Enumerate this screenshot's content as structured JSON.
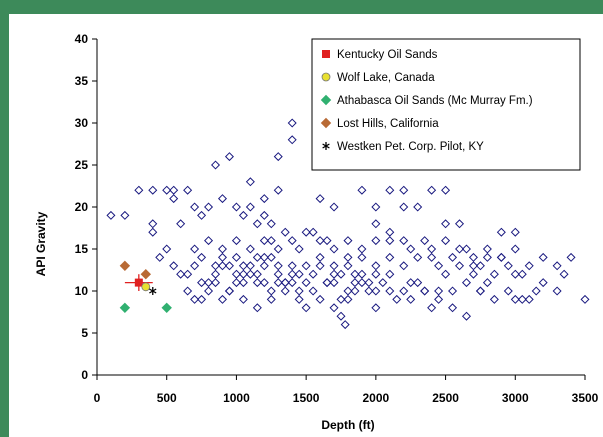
{
  "chart_data": {
    "type": "scatter",
    "title": "",
    "xlabel": "Depth (ft)",
    "ylabel": "API Gravity",
    "xlim": [
      0,
      3500
    ],
    "ylim": [
      0,
      40
    ],
    "xticks": [
      0,
      500,
      1000,
      1500,
      2000,
      2500,
      3000,
      3500
    ],
    "yticks": [
      0,
      5,
      10,
      15,
      20,
      25,
      30,
      35,
      40
    ],
    "grid": false,
    "legend_position": "top-right",
    "series": [
      {
        "name": "Kentucky Oil Sands",
        "marker": "square",
        "color": "#e02020",
        "points": [
          [
            300,
            11
          ]
        ],
        "error_x": [
          [
            200,
            400
          ]
        ],
        "error_y": [
          [
            10,
            12
          ]
        ]
      },
      {
        "name": "Wolf Lake, Canada",
        "marker": "circle",
        "color": "#e8e030",
        "points": [
          [
            350,
            10.5
          ]
        ]
      },
      {
        "name": "Athabasca Oil Sands (Mc Murray Fm.)",
        "marker": "diamond",
        "color": "#30b070",
        "points": [
          [
            200,
            8
          ],
          [
            500,
            8
          ]
        ]
      },
      {
        "name": "Lost Hills, California",
        "marker": "diamond",
        "color": "#b86a35",
        "points": [
          [
            200,
            13
          ],
          [
            350,
            12
          ]
        ]
      },
      {
        "name": "Westken Pet. Corp. Pilot, KY",
        "marker": "star",
        "color": "#000000",
        "points": [
          [
            400,
            10
          ]
        ]
      }
    ],
    "background_points": {
      "marker": "diamond-open",
      "color": "#1a1a80",
      "points": [
        [
          100,
          19
        ],
        [
          200,
          19
        ],
        [
          300,
          22
        ],
        [
          400,
          22
        ],
        [
          500,
          22
        ],
        [
          550,
          22
        ],
        [
          600,
          18
        ],
        [
          450,
          14
        ],
        [
          400,
          18
        ],
        [
          400,
          17
        ],
        [
          500,
          15
        ],
        [
          550,
          13
        ],
        [
          600,
          12
        ],
        [
          650,
          12
        ],
        [
          700,
          13
        ],
        [
          750,
          14
        ],
        [
          800,
          11
        ],
        [
          850,
          12
        ],
        [
          900,
          14
        ],
        [
          950,
          13
        ],
        [
          1000,
          12
        ],
        [
          1050,
          11
        ],
        [
          1100,
          13
        ],
        [
          1150,
          12
        ],
        [
          1200,
          13
        ],
        [
          1250,
          14
        ],
        [
          1300,
          12
        ],
        [
          1350,
          11
        ],
        [
          1400,
          13
        ],
        [
          1450,
          12
        ],
        [
          1500,
          11
        ],
        [
          1550,
          12
        ],
        [
          1600,
          13
        ],
        [
          1650,
          11
        ],
        [
          1700,
          13
        ],
        [
          1750,
          12
        ],
        [
          1800,
          13
        ],
        [
          1850,
          12
        ],
        [
          1900,
          14
        ],
        [
          1950,
          11
        ],
        [
          2000,
          12
        ],
        [
          2100,
          12
        ],
        [
          2200,
          13
        ],
        [
          2300,
          11
        ],
        [
          2400,
          14
        ],
        [
          2500,
          12
        ],
        [
          2600,
          13
        ],
        [
          2700,
          12
        ],
        [
          2800,
          11
        ],
        [
          2900,
          14
        ],
        [
          3000,
          12
        ],
        [
          3100,
          13
        ],
        [
          3200,
          11
        ],
        [
          3300,
          13
        ],
        [
          3400,
          14
        ],
        [
          3500,
          9
        ],
        [
          650,
          10
        ],
        [
          750,
          9
        ],
        [
          850,
          11
        ],
        [
          950,
          10
        ],
        [
          1050,
          12
        ],
        [
          1150,
          11
        ],
        [
          1250,
          10
        ],
        [
          1350,
          11
        ],
        [
          1450,
          9
        ],
        [
          1550,
          10
        ],
        [
          1650,
          11
        ],
        [
          1750,
          9
        ],
        [
          1850,
          11
        ],
        [
          1950,
          10
        ],
        [
          2050,
          11
        ],
        [
          2150,
          9
        ],
        [
          2250,
          11
        ],
        [
          2350,
          10
        ],
        [
          2450,
          9
        ],
        [
          2550,
          10
        ],
        [
          2650,
          11
        ],
        [
          2750,
          10
        ],
        [
          2850,
          9
        ],
        [
          2950,
          10
        ],
        [
          3050,
          9
        ],
        [
          3150,
          10
        ],
        [
          700,
          15
        ],
        [
          800,
          16
        ],
        [
          900,
          15
        ],
        [
          1000,
          16
        ],
        [
          1100,
          15
        ],
        [
          1200,
          16
        ],
        [
          1300,
          15
        ],
        [
          1400,
          16
        ],
        [
          1500,
          17
        ],
        [
          1600,
          16
        ],
        [
          1700,
          15
        ],
        [
          1800,
          16
        ],
        [
          1900,
          15
        ],
        [
          2000,
          16
        ],
        [
          2100,
          17
        ],
        [
          2200,
          16
        ],
        [
          2300,
          14
        ],
        [
          2400,
          15
        ],
        [
          2500,
          16
        ],
        [
          2600,
          15
        ],
        [
          2800,
          15
        ],
        [
          2900,
          14
        ],
        [
          3000,
          15
        ],
        [
          2700,
          14
        ],
        [
          700,
          20
        ],
        [
          800,
          20
        ],
        [
          900,
          21
        ],
        [
          1000,
          20
        ],
        [
          1050,
          19
        ],
        [
          950,
          26
        ],
        [
          850,
          25
        ],
        [
          1100,
          23
        ],
        [
          1200,
          21
        ],
        [
          1300,
          22
        ],
        [
          1400,
          28
        ],
        [
          1400,
          30
        ],
        [
          1300,
          26
        ],
        [
          1200,
          19
        ],
        [
          1150,
          18
        ],
        [
          750,
          19
        ],
        [
          650,
          22
        ],
        [
          550,
          21
        ],
        [
          1100,
          20
        ],
        [
          1250,
          18
        ],
        [
          2000,
          25
        ],
        [
          2100,
          22
        ],
        [
          2200,
          22
        ],
        [
          2300,
          25
        ],
        [
          2400,
          22
        ],
        [
          2500,
          22
        ],
        [
          2550,
          25
        ],
        [
          2600,
          25
        ],
        [
          2650,
          26
        ],
        [
          2800,
          25
        ],
        [
          2950,
          25
        ],
        [
          3100,
          30
        ],
        [
          3050,
          29
        ],
        [
          3000,
          26
        ],
        [
          1850,
          25
        ],
        [
          2000,
          20
        ],
        [
          2200,
          20
        ],
        [
          2450,
          26
        ],
        [
          2300,
          20
        ],
        [
          2500,
          18
        ],
        [
          1600,
          21
        ],
        [
          1700,
          20
        ],
        [
          1900,
          22
        ],
        [
          2000,
          18
        ],
        [
          2100,
          16
        ],
        [
          2600,
          18
        ],
        [
          2900,
          17
        ],
        [
          3000,
          17
        ],
        [
          2700,
          13
        ],
        [
          2800,
          14
        ],
        [
          1750,
          7
        ],
        [
          1780,
          6
        ],
        [
          1700,
          8
        ],
        [
          1800,
          9
        ],
        [
          1850,
          10
        ],
        [
          1900,
          11
        ],
        [
          2000,
          8
        ],
        [
          2100,
          10
        ],
        [
          2250,
          9
        ],
        [
          2400,
          8
        ],
        [
          2650,
          7
        ],
        [
          2550,
          8
        ],
        [
          2450,
          10
        ],
        [
          2350,
          10
        ],
        [
          2750,
          10
        ],
        [
          3000,
          9
        ],
        [
          3100,
          9
        ],
        [
          3300,
          10
        ],
        [
          1600,
          9
        ],
        [
          1500,
          8
        ],
        [
          1150,
          8
        ],
        [
          1250,
          9
        ],
        [
          1350,
          10
        ],
        [
          1450,
          10
        ],
        [
          1050,
          9
        ],
        [
          950,
          10
        ],
        [
          900,
          9
        ],
        [
          800,
          10
        ],
        [
          750,
          11
        ],
        [
          700,
          9
        ],
        [
          1200,
          14
        ],
        [
          1300,
          13
        ],
        [
          1400,
          12
        ],
        [
          1500,
          13
        ],
        [
          1600,
          14
        ],
        [
          1700,
          12
        ],
        [
          1800,
          14
        ],
        [
          1900,
          12
        ],
        [
          2000,
          13
        ],
        [
          2100,
          14
        ],
        [
          1550,
          17
        ],
        [
          1650,
          16
        ],
        [
          1450,
          15
        ],
        [
          1350,
          17
        ],
        [
          1250,
          16
        ],
        [
          1150,
          14
        ],
        [
          1050,
          13
        ],
        [
          2250,
          15
        ],
        [
          2350,
          16
        ],
        [
          2450,
          13
        ],
        [
          2550,
          14
        ],
        [
          2650,
          15
        ],
        [
          2750,
          13
        ],
        [
          2850,
          12
        ],
        [
          2950,
          13
        ],
        [
          3050,
          12
        ],
        [
          3350,
          12
        ],
        [
          3200,
          14
        ],
        [
          1000,
          14
        ],
        [
          900,
          13
        ],
        [
          850,
          13
        ],
        [
          1100,
          12
        ],
        [
          1000,
          11
        ],
        [
          1200,
          11
        ],
        [
          1300,
          11
        ],
        [
          1400,
          11
        ],
        [
          1700,
          11
        ],
        [
          1800,
          10
        ],
        [
          2000,
          10
        ],
        [
          2200,
          10
        ]
      ]
    }
  }
}
